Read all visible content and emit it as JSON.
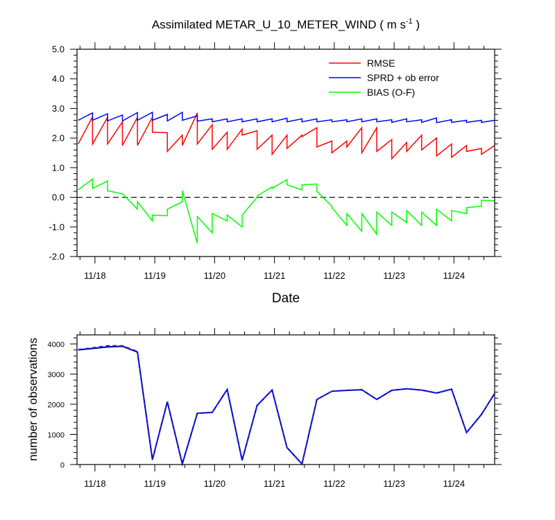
{
  "chart_data": [
    {
      "type": "line",
      "title": "Assimilated METAR_U_10_METER_WIND ( m s",
      "title_units_sup": "-1",
      "title_close": " )",
      "xlabel": "Date",
      "ylabel": "",
      "ylim": [
        -2.0,
        5.0
      ],
      "yticks": [
        "-2.0",
        "-1.0",
        "0.0",
        "1.0",
        "2.0",
        "3.0",
        "4.0",
        "5.0"
      ],
      "xlim": [
        -0.05,
        6.93
      ],
      "xticks": [
        {
          "x": 0.25,
          "label": "11/18"
        },
        {
          "x": 1.25,
          "label": "11/19"
        },
        {
          "x": 2.25,
          "label": "11/20"
        },
        {
          "x": 3.25,
          "label": "11/21"
        },
        {
          "x": 4.25,
          "label": "11/22"
        },
        {
          "x": 5.25,
          "label": "11/23"
        },
        {
          "x": 6.25,
          "label": "11/24"
        }
      ],
      "zero_line": "dashed",
      "grid": false,
      "legend_position": "top-right",
      "series": [
        {
          "name": "RMSE",
          "color": "#ff0000",
          "points": [
            [
              -0.03,
              1.8
            ],
            [
              0.21,
              2.72
            ],
            [
              0.21,
              1.8
            ],
            [
              0.46,
              2.7
            ],
            [
              0.46,
              1.8
            ],
            [
              0.71,
              2.55
            ],
            [
              0.71,
              1.75
            ],
            [
              0.96,
              2.7
            ],
            [
              0.96,
              1.75
            ],
            [
              1.21,
              2.7
            ],
            [
              1.21,
              2.2
            ],
            [
              1.46,
              2.18
            ],
            [
              1.46,
              1.55
            ],
            [
              1.71,
              2.1
            ],
            [
              1.71,
              1.75
            ],
            [
              1.96,
              2.85
            ],
            [
              1.96,
              1.8
            ],
            [
              2.21,
              2.45
            ],
            [
              2.21,
              1.62
            ],
            [
              2.46,
              2.2
            ],
            [
              2.46,
              1.62
            ],
            [
              2.71,
              2.3
            ],
            [
              2.71,
              2.1
            ],
            [
              2.96,
              2.25
            ],
            [
              2.96,
              1.62
            ],
            [
              3.21,
              2.1
            ],
            [
              3.21,
              1.45
            ],
            [
              3.46,
              2.1
            ],
            [
              3.46,
              1.65
            ],
            [
              3.71,
              2.1
            ],
            [
              3.71,
              2.05
            ],
            [
              3.96,
              2.35
            ],
            [
              3.96,
              1.7
            ],
            [
              4.21,
              1.9
            ],
            [
              4.21,
              1.5
            ],
            [
              4.46,
              1.9
            ],
            [
              4.46,
              1.7
            ],
            [
              4.71,
              2.35
            ],
            [
              4.71,
              1.5
            ],
            [
              4.96,
              2.35
            ],
            [
              4.96,
              1.55
            ],
            [
              5.21,
              1.95
            ],
            [
              5.21,
              1.3
            ],
            [
              5.46,
              1.85
            ],
            [
              5.46,
              1.55
            ],
            [
              5.71,
              2.1
            ],
            [
              5.71,
              1.6
            ],
            [
              5.96,
              2.0
            ],
            [
              5.96,
              1.4
            ],
            [
              6.21,
              1.8
            ],
            [
              6.21,
              1.35
            ],
            [
              6.46,
              1.75
            ],
            [
              6.46,
              1.55
            ],
            [
              6.71,
              1.65
            ],
            [
              6.71,
              1.45
            ],
            [
              6.93,
              1.75
            ]
          ]
        },
        {
          "name": "SPRD + ob error",
          "color": "#0000ff",
          "points": [
            [
              -0.03,
              2.6
            ],
            [
              0.21,
              2.85
            ],
            [
              0.21,
              2.6
            ],
            [
              0.46,
              2.82
            ],
            [
              0.46,
              2.58
            ],
            [
              0.71,
              2.78
            ],
            [
              0.71,
              2.58
            ],
            [
              0.96,
              2.86
            ],
            [
              0.96,
              2.6
            ],
            [
              1.21,
              2.87
            ],
            [
              1.21,
              2.6
            ],
            [
              1.46,
              2.8
            ],
            [
              1.46,
              2.58
            ],
            [
              1.71,
              2.87
            ],
            [
              1.71,
              2.6
            ],
            [
              1.96,
              2.75
            ],
            [
              1.96,
              2.57
            ],
            [
              2.21,
              2.65
            ],
            [
              2.21,
              2.55
            ],
            [
              2.46,
              2.65
            ],
            [
              2.46,
              2.55
            ],
            [
              2.71,
              2.65
            ],
            [
              2.71,
              2.55
            ],
            [
              2.96,
              2.65
            ],
            [
              2.96,
              2.55
            ],
            [
              3.21,
              2.65
            ],
            [
              3.21,
              2.55
            ],
            [
              3.46,
              2.67
            ],
            [
              3.46,
              2.55
            ],
            [
              3.71,
              2.65
            ],
            [
              3.71,
              2.55
            ],
            [
              3.96,
              2.65
            ],
            [
              3.96,
              2.55
            ],
            [
              4.21,
              2.62
            ],
            [
              4.21,
              2.55
            ],
            [
              4.46,
              2.62
            ],
            [
              4.46,
              2.55
            ],
            [
              4.71,
              2.65
            ],
            [
              4.71,
              2.55
            ],
            [
              4.96,
              2.65
            ],
            [
              4.96,
              2.55
            ],
            [
              5.21,
              2.62
            ],
            [
              5.21,
              2.53
            ],
            [
              5.46,
              2.65
            ],
            [
              5.46,
              2.55
            ],
            [
              5.71,
              2.62
            ],
            [
              5.71,
              2.53
            ],
            [
              5.96,
              2.68
            ],
            [
              5.96,
              2.52
            ],
            [
              6.21,
              2.62
            ],
            [
              6.21,
              2.53
            ],
            [
              6.46,
              2.6
            ],
            [
              6.46,
              2.53
            ],
            [
              6.71,
              2.6
            ],
            [
              6.71,
              2.53
            ],
            [
              6.93,
              2.6
            ]
          ]
        },
        {
          "name": "BIAS (O-F)",
          "color": "#00ff00",
          "points": [
            [
              -0.03,
              0.25
            ],
            [
              0.21,
              0.62
            ],
            [
              0.21,
              0.3
            ],
            [
              0.46,
              0.55
            ],
            [
              0.46,
              0.22
            ],
            [
              0.71,
              0.12
            ],
            [
              0.96,
              -0.4
            ],
            [
              0.96,
              -0.15
            ],
            [
              1.21,
              -0.8
            ],
            [
              1.21,
              -0.6
            ],
            [
              1.46,
              -0.62
            ],
            [
              1.46,
              -0.4
            ],
            [
              1.71,
              -0.15
            ],
            [
              1.71,
              0.22
            ],
            [
              1.96,
              -1.55
            ],
            [
              1.96,
              -0.65
            ],
            [
              2.21,
              -1.2
            ],
            [
              2.21,
              -0.55
            ],
            [
              2.46,
              -0.8
            ],
            [
              2.46,
              -0.6
            ],
            [
              2.71,
              -1.0
            ],
            [
              2.71,
              -0.6
            ],
            [
              2.96,
              0.0
            ],
            [
              2.96,
              0.05
            ],
            [
              3.21,
              0.35
            ],
            [
              3.21,
              0.3
            ],
            [
              3.46,
              0.6
            ],
            [
              3.46,
              0.42
            ],
            [
              3.71,
              0.25
            ],
            [
              3.71,
              0.42
            ],
            [
              3.96,
              0.45
            ],
            [
              3.96,
              0.2
            ],
            [
              4.21,
              -0.3
            ],
            [
              4.21,
              -0.35
            ],
            [
              4.46,
              -0.95
            ],
            [
              4.46,
              -0.55
            ],
            [
              4.71,
              -1.15
            ],
            [
              4.71,
              -0.55
            ],
            [
              4.96,
              -1.25
            ],
            [
              4.96,
              -0.5
            ],
            [
              5.21,
              -0.95
            ],
            [
              5.21,
              -0.5
            ],
            [
              5.46,
              -0.85
            ],
            [
              5.46,
              -0.45
            ],
            [
              5.71,
              -0.95
            ],
            [
              5.71,
              -0.5
            ],
            [
              5.96,
              -0.95
            ],
            [
              5.96,
              -0.4
            ],
            [
              6.21,
              -0.8
            ],
            [
              6.21,
              -0.45
            ],
            [
              6.46,
              -0.55
            ],
            [
              6.46,
              -0.35
            ],
            [
              6.71,
              -0.3
            ],
            [
              6.71,
              -0.1
            ],
            [
              6.93,
              -0.12
            ]
          ]
        }
      ]
    },
    {
      "type": "line",
      "title": "",
      "xlabel": "",
      "ylabel": "number of observations",
      "ylim": [
        0,
        4300
      ],
      "yticks": [
        "0",
        "1000",
        "2000",
        "3000",
        "4000"
      ],
      "xlim": [
        -0.05,
        6.93
      ],
      "xticks": [
        {
          "x": 0.25,
          "label": "11/18"
        },
        {
          "x": 1.25,
          "label": "11/19"
        },
        {
          "x": 2.25,
          "label": "11/20"
        },
        {
          "x": 3.25,
          "label": "11/21"
        },
        {
          "x": 4.25,
          "label": "11/22"
        },
        {
          "x": 5.25,
          "label": "11/23"
        },
        {
          "x": 6.25,
          "label": "11/24"
        }
      ],
      "grid": false,
      "series": [
        {
          "color": "#000080",
          "style": "solid",
          "x": [
            -0.03,
            0.21,
            0.46,
            0.71,
            0.96,
            1.21,
            1.46,
            1.71,
            1.96,
            2.21,
            2.46,
            2.71,
            2.96,
            3.21,
            3.46,
            3.71,
            3.96,
            4.21,
            4.46,
            4.71,
            4.96,
            5.21,
            5.46,
            5.71,
            5.96,
            6.21,
            6.46,
            6.71,
            6.93
          ],
          "values": [
            3800,
            3850,
            3900,
            3920,
            3730,
            160,
            2080,
            20,
            1700,
            1730,
            2490,
            140,
            1960,
            2470,
            560,
            20,
            2160,
            2430,
            2460,
            2480,
            2160,
            2460,
            2510,
            2470,
            2370,
            2500,
            1060,
            1660,
            2360
          ]
        },
        {
          "color": "#1b1bff",
          "style": "dashed",
          "x": [
            -0.03,
            0.21,
            0.46,
            0.71,
            0.96,
            1.21,
            1.46,
            1.71,
            1.96,
            2.21,
            2.46,
            2.71,
            2.96,
            3.21,
            3.46,
            3.71,
            3.96,
            4.21,
            4.46,
            4.71,
            4.96,
            5.21,
            5.46,
            5.71,
            5.96,
            6.21,
            6.46,
            6.71,
            6.93
          ],
          "values": [
            3810,
            3870,
            3940,
            3940,
            3750,
            160,
            2080,
            20,
            1700,
            1730,
            2490,
            140,
            1960,
            2470,
            560,
            20,
            2160,
            2430,
            2460,
            2480,
            2160,
            2460,
            2510,
            2470,
            2370,
            2500,
            1060,
            1660,
            2360
          ]
        }
      ]
    }
  ]
}
